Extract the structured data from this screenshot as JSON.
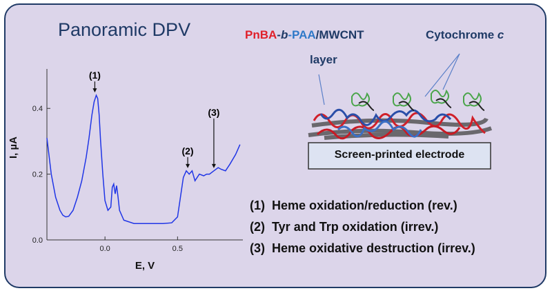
{
  "title": "Panoramic DPV",
  "header": {
    "polymer_a": "PnBA",
    "dash1": "-",
    "b_italic": "b",
    "dash2": "-",
    "polymer_b": "PAA",
    "slash_cnt": "/MWCNT",
    "layer": "layer",
    "protein": "Cytochrome",
    "protein_italic": "c"
  },
  "electrode_label": "Screen-printed electrode",
  "legend": [
    {
      "num": "(1)",
      "text": "Heme oxidation/reduction (rev.)"
    },
    {
      "num": "(2)",
      "text": "Tyr and Trp oxidation (irrev.)"
    },
    {
      "num": "(3)",
      "text": "Heme oxidative destruction (irrev.)"
    }
  ],
  "colors": {
    "navy": "#1f3a66",
    "red": "#e0202a",
    "blue": "#2f79c8",
    "curve": "#1f35e6",
    "panel": "#dcd5ea"
  },
  "chart_data": {
    "type": "line",
    "xlabel": "E, V",
    "ylabel": "I, µA",
    "xlim": [
      -0.4,
      0.95
    ],
    "ylim": [
      0,
      0.52
    ],
    "xticks": [
      {
        "v": 0,
        "label": "0.0"
      },
      {
        "v": 0.5,
        "label": "0.5"
      }
    ],
    "yticks": [
      {
        "v": 0,
        "label": "0.0"
      },
      {
        "v": 0.2,
        "label": "0.2"
      },
      {
        "v": 0.4,
        "label": "0.4"
      }
    ],
    "series": [
      {
        "x": [
          -0.4,
          -0.37,
          -0.34,
          -0.31,
          -0.29,
          -0.27,
          -0.25,
          -0.22,
          -0.19,
          -0.16,
          -0.13,
          -0.11,
          -0.09,
          -0.075,
          -0.06,
          -0.05,
          -0.04,
          -0.03,
          -0.015,
          0.0,
          0.02,
          0.04,
          0.05,
          0.06,
          0.07,
          0.08,
          0.09,
          0.1,
          0.13,
          0.2,
          0.3,
          0.4,
          0.46,
          0.5,
          0.52,
          0.54,
          0.56,
          0.58,
          0.6,
          0.62,
          0.65,
          0.68,
          0.7,
          0.72,
          0.75,
          0.78,
          0.8,
          0.83,
          0.86,
          0.9,
          0.93
        ],
        "y": [
          0.31,
          0.2,
          0.13,
          0.09,
          0.075,
          0.07,
          0.072,
          0.09,
          0.13,
          0.18,
          0.25,
          0.31,
          0.38,
          0.42,
          0.44,
          0.43,
          0.38,
          0.3,
          0.2,
          0.12,
          0.09,
          0.1,
          0.16,
          0.17,
          0.14,
          0.165,
          0.13,
          0.09,
          0.06,
          0.05,
          0.05,
          0.05,
          0.052,
          0.07,
          0.13,
          0.19,
          0.21,
          0.2,
          0.21,
          0.18,
          0.2,
          0.195,
          0.2,
          0.2,
          0.21,
          0.22,
          0.215,
          0.21,
          0.23,
          0.26,
          0.29
        ]
      }
    ],
    "annotations": [
      {
        "label": "(1)",
        "x": -0.07,
        "y": 0.44
      },
      {
        "label": "(2)",
        "x": 0.57,
        "y": 0.21
      },
      {
        "label": "(3)",
        "x": 0.75,
        "y": 0.21
      }
    ]
  }
}
